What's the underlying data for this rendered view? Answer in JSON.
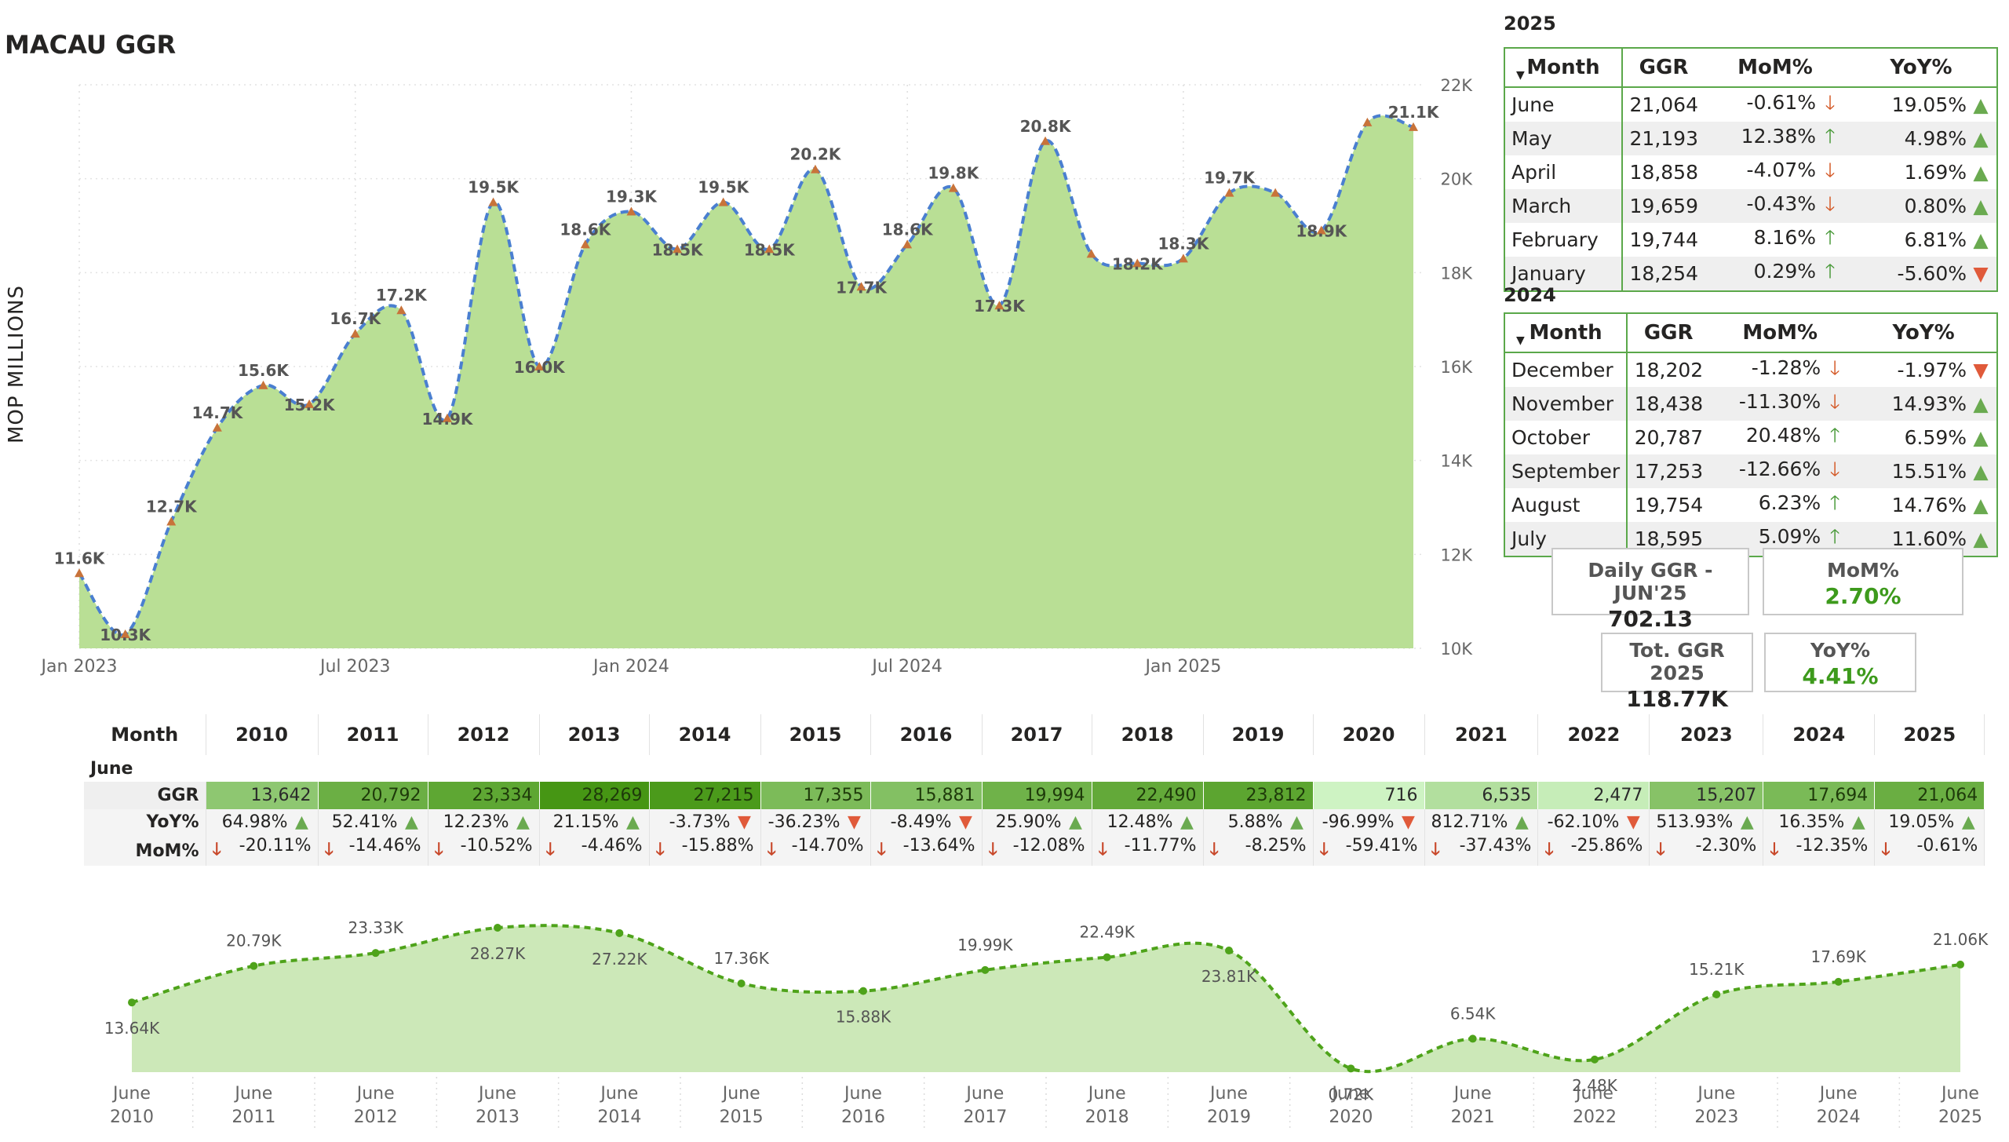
{
  "title": "MACAU GGR",
  "chart_data": [
    {
      "type": "area",
      "ylabel": "MOP MILLIONS",
      "ylim": [
        10000,
        22000
      ],
      "yticks": [
        "22K",
        "20K",
        "18K",
        "16K",
        "14K",
        "12K",
        "10K"
      ],
      "xticks": [
        "Jan 2023",
        "Jul 2023",
        "Jan 2024",
        "Jul 2024",
        "Jan 2025"
      ],
      "x": [
        "2023-01",
        "2023-02",
        "2023-03",
        "2023-04",
        "2023-05",
        "2023-06",
        "2023-07",
        "2023-08",
        "2023-09",
        "2023-10",
        "2023-11",
        "2023-12",
        "2024-01",
        "2024-02",
        "2024-03",
        "2024-04",
        "2024-05",
        "2024-06",
        "2024-07",
        "2024-08",
        "2024-09",
        "2024-10",
        "2024-11",
        "2024-12",
        "2025-01",
        "2025-02",
        "2025-03",
        "2025-04",
        "2025-05",
        "2025-06"
      ],
      "values": [
        11600,
        10300,
        12700,
        14700,
        15600,
        15200,
        16700,
        17200,
        14900,
        19500,
        16000,
        18600,
        19300,
        18500,
        19500,
        18500,
        20200,
        17700,
        18600,
        19800,
        17300,
        20800,
        18400,
        18200,
        18300,
        19700,
        19700,
        18900,
        21200,
        21100
      ],
      "labels": [
        "11.6K",
        "10.3K",
        "12.7K",
        "14.7K",
        "15.6K",
        "15.2K",
        "16.7K",
        "17.2K",
        "14.9K",
        "19.5K",
        "16.0K",
        "18.6K",
        "19.3K",
        "18.5K",
        "19.5K",
        "18.5K",
        "20.2K",
        "17.7K",
        "18.6K",
        "19.8K",
        "17.3K",
        "20.8K",
        "",
        "18.2K",
        "18.3K",
        "19.7K",
        "",
        "18.9K",
        "",
        "21.1K"
      ],
      "colors": {
        "area": "#b9df95",
        "line": "#4a7fd0",
        "marker": "#c8733a"
      }
    },
    {
      "type": "area",
      "categories": [
        "June 2010",
        "June 2011",
        "June 2012",
        "June 2013",
        "June 2014",
        "June 2015",
        "June 2016",
        "June 2017",
        "June 2018",
        "June 2019",
        "June 2020",
        "June 2021",
        "June 2022",
        "June 2023",
        "June 2024",
        "June 2025"
      ],
      "values": [
        13.64,
        20.79,
        23.33,
        28.27,
        27.22,
        17.36,
        15.88,
        19.99,
        22.49,
        23.81,
        0.72,
        6.54,
        2.48,
        15.21,
        17.69,
        21.06
      ],
      "labels": [
        "13.64K",
        "20.79K",
        "23.33K",
        "28.27K",
        "27.22K",
        "17.36K",
        "15.88K",
        "19.99K",
        "22.49K",
        "23.81K",
        "0.72K",
        "6.54K",
        "2.48K",
        "15.21K",
        "17.69K",
        "21.06K"
      ],
      "colors": {
        "area": "#cce8b8",
        "line": "#4ea31a"
      }
    }
  ],
  "table2025": {
    "year": "2025",
    "headers": [
      "Month",
      "GGR",
      "MoM%",
      "YoY%"
    ],
    "rows": [
      {
        "month": "June",
        "ggr": "21,064",
        "mom": "-0.61%",
        "mom_dir": "down",
        "yoy": "19.05%",
        "yoy_dir": "up"
      },
      {
        "month": "May",
        "ggr": "21,193",
        "mom": "12.38%",
        "mom_dir": "up",
        "yoy": "4.98%",
        "yoy_dir": "up"
      },
      {
        "month": "April",
        "ggr": "18,858",
        "mom": "-4.07%",
        "mom_dir": "down",
        "yoy": "1.69%",
        "yoy_dir": "up"
      },
      {
        "month": "March",
        "ggr": "19,659",
        "mom": "-0.43%",
        "mom_dir": "down",
        "yoy": "0.80%",
        "yoy_dir": "up"
      },
      {
        "month": "February",
        "ggr": "19,744",
        "mom": "8.16%",
        "mom_dir": "up",
        "yoy": "6.81%",
        "yoy_dir": "up"
      },
      {
        "month": "January",
        "ggr": "18,254",
        "mom": "0.29%",
        "mom_dir": "up",
        "yoy": "-5.60%",
        "yoy_dir": "down"
      }
    ]
  },
  "table2024": {
    "year": "2024",
    "headers": [
      "Month",
      "GGR",
      "MoM%",
      "YoY%"
    ],
    "rows": [
      {
        "month": "December",
        "ggr": "18,202",
        "mom": "-1.28%",
        "mom_dir": "down",
        "yoy": "-1.97%",
        "yoy_dir": "down"
      },
      {
        "month": "November",
        "ggr": "18,438",
        "mom": "-11.30%",
        "mom_dir": "down",
        "yoy": "14.93%",
        "yoy_dir": "up"
      },
      {
        "month": "October",
        "ggr": "20,787",
        "mom": "20.48%",
        "mom_dir": "up",
        "yoy": "6.59%",
        "yoy_dir": "up"
      },
      {
        "month": "September",
        "ggr": "17,253",
        "mom": "-12.66%",
        "mom_dir": "down",
        "yoy": "15.51%",
        "yoy_dir": "up"
      },
      {
        "month": "August",
        "ggr": "19,754",
        "mom": "6.23%",
        "mom_dir": "up",
        "yoy": "14.76%",
        "yoy_dir": "up"
      },
      {
        "month": "July",
        "ggr": "18,595",
        "mom": "5.09%",
        "mom_dir": "up",
        "yoy": "11.60%",
        "yoy_dir": "up"
      }
    ]
  },
  "cards": {
    "daily_label": "Daily GGR - JUN'25",
    "daily_value": "702.13",
    "mom_label": "MoM%",
    "mom_value": "2.70%",
    "total_label": "Tot. GGR 2025",
    "total_value": "118.77K",
    "yoy_label": "YoY%",
    "yoy_value": "4.41%"
  },
  "year_table": {
    "corner": "Month",
    "group": "June",
    "years": [
      "2010",
      "2011",
      "2012",
      "2013",
      "2014",
      "2015",
      "2016",
      "2017",
      "2018",
      "2019",
      "2020",
      "2021",
      "2022",
      "2023",
      "2024",
      "2025"
    ],
    "row_labels": {
      "ggr": "GGR",
      "yoy": "YoY%",
      "mom": "MoM%"
    },
    "ggr": [
      13642,
      20792,
      23334,
      28269,
      27215,
      17355,
      15881,
      19994,
      22490,
      23812,
      716,
      6535,
      2477,
      15207,
      17694,
      21064
    ],
    "ggr_text": [
      "13,642",
      "20,792",
      "23,334",
      "28,269",
      "27,215",
      "17,355",
      "15,881",
      "19,994",
      "22,490",
      "23,812",
      "716",
      "6,535",
      "2,477",
      "15,207",
      "17,694",
      "21,064"
    ],
    "yoy": [
      "64.98%",
      "52.41%",
      "12.23%",
      "21.15%",
      "-3.73%",
      "-36.23%",
      "-8.49%",
      "25.90%",
      "12.48%",
      "5.88%",
      "-96.99%",
      "812.71%",
      "-62.10%",
      "513.93%",
      "16.35%",
      "19.05%"
    ],
    "mom": [
      "-20.11%",
      "-14.46%",
      "-10.52%",
      "-4.46%",
      "-15.88%",
      "-14.70%",
      "-13.64%",
      "-12.08%",
      "-11.77%",
      "-8.25%",
      "-59.41%",
      "-37.43%",
      "-25.86%",
      "-2.30%",
      "-12.35%",
      "-0.61%"
    ]
  }
}
